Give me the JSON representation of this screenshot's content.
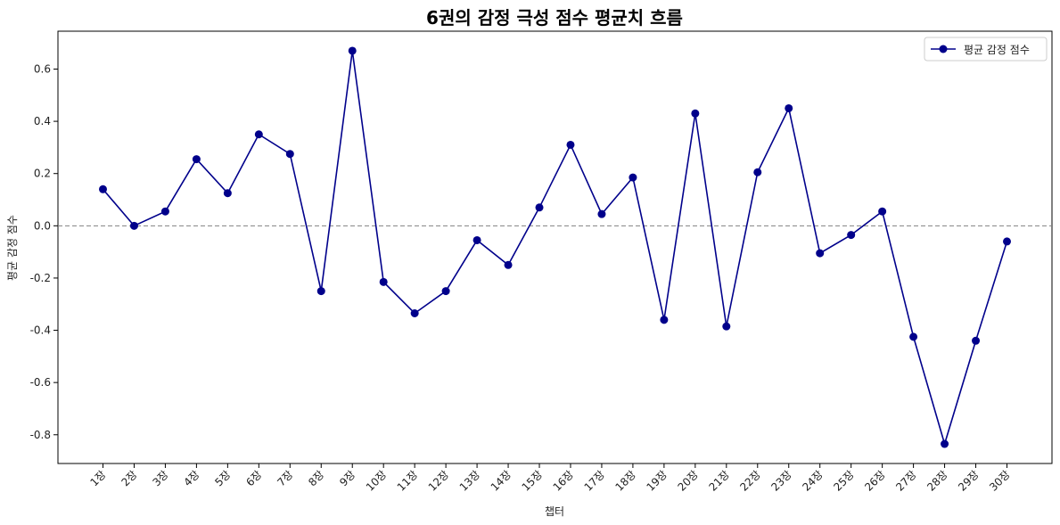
{
  "chart_data": {
    "type": "line",
    "title": "6권의 감정 극성 점수 평균치 흐름",
    "xlabel": "챕터",
    "ylabel": "평균 감정 점수",
    "categories": [
      "1장",
      "2장",
      "3장",
      "4장",
      "5장",
      "6장",
      "7장",
      "8장",
      "9장",
      "10장",
      "11장",
      "12장",
      "13장",
      "14장",
      "15장",
      "16장",
      "17장",
      "18장",
      "19장",
      "20장",
      "21장",
      "22장",
      "23장",
      "24장",
      "25장",
      "26장",
      "27장",
      "28장",
      "29장",
      "30장"
    ],
    "series": [
      {
        "name": "평균 감정 점수",
        "color": "#00008b",
        "marker": "circle",
        "values": [
          0.14,
          0.0,
          0.055,
          0.255,
          0.125,
          0.35,
          0.275,
          -0.25,
          0.67,
          -0.215,
          -0.335,
          -0.25,
          -0.055,
          -0.15,
          0.07,
          0.31,
          0.045,
          0.185,
          -0.36,
          0.43,
          -0.385,
          0.205,
          0.45,
          -0.105,
          -0.035,
          0.055,
          -0.425,
          -0.835,
          -0.44,
          -0.06
        ]
      }
    ],
    "yticks": [
      -0.8,
      -0.6,
      -0.4,
      -0.2,
      0.0,
      0.2,
      0.4,
      0.6
    ],
    "ytick_labels": [
      "-0.8",
      "-0.6",
      "-0.4",
      "-0.2",
      "0.0",
      "0.2",
      "0.4",
      "0.6"
    ],
    "ylim": [
      -0.91,
      0.745
    ],
    "reference_line": {
      "y": 0.0,
      "style": "dashed",
      "color": "#808080"
    },
    "legend_position": "top-right",
    "grid": false
  }
}
